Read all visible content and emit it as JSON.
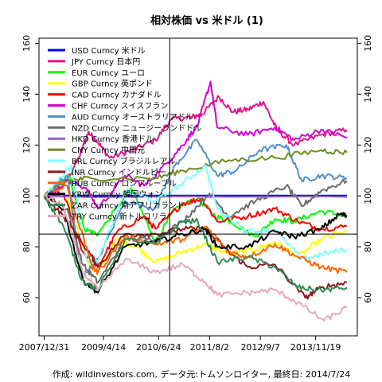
{
  "chart_data": {
    "type": "line",
    "title": "相対株価 vs 米ドル (1)",
    "caption": "作成: wildinvestors.com, データ元:トムソンロイター, 最終日: 2014/7/24",
    "ylim": [
      45,
      162
    ],
    "xlim": [
      "2007-11-20",
      "2014-10-15"
    ],
    "y_ticks": [
      60,
      80,
      100,
      120,
      140,
      160
    ],
    "x_ticks": [
      {
        "label": "2007/12/31",
        "date": "2007-12-31"
      },
      {
        "label": "2009/4/14",
        "date": "2009-04-14"
      },
      {
        "label": "2010/6/24",
        "date": "2010-06-24"
      },
      {
        "label": "2011/8/2",
        "date": "2011-08-02"
      },
      {
        "label": "2012/9/7",
        "date": "2012-09-07"
      },
      {
        "label": "2013/11/19",
        "date": "2013-11-19"
      }
    ],
    "reference_lines": {
      "horizontal": 85,
      "vertical_date": "2010-09-20"
    },
    "legend_position": "top-left",
    "series": [
      {
        "name": "USD Curncy 米ドル",
        "color": "#0000ff",
        "width": 3,
        "dates": [
          "2007-12-31",
          "2014-07-24"
        ],
        "values": [
          100,
          100
        ]
      },
      {
        "name": "JPY Curncy 日本円",
        "color": "#e0168c",
        "width": 2,
        "dates": [
          "2007-12-31",
          "2008-06-01",
          "2008-10-01",
          "2008-12-15",
          "2009-02-15",
          "2009-06-01",
          "2009-12-01",
          "2010-06-01",
          "2010-10-01",
          "2011-03-15",
          "2011-06-01",
          "2011-10-15",
          "2012-02-01",
          "2012-06-01",
          "2012-10-01",
          "2013-01-15",
          "2013-06-01",
          "2014-01-01",
          "2014-07-24"
        ],
        "values": [
          100,
          104,
          115,
          125,
          122,
          115,
          118,
          122,
          130,
          131,
          132,
          139,
          133,
          134,
          137,
          126,
          120,
          124,
          126
        ]
      },
      {
        "name": "EUR Curncy ユーロ",
        "color": "#00ff00",
        "width": 2,
        "dates": [
          "2007-12-31",
          "2008-07-15",
          "2008-11-15",
          "2009-03-01",
          "2009-11-20",
          "2010-06-01",
          "2010-11-01",
          "2011-04-30",
          "2011-09-15",
          "2012-01-15",
          "2012-07-25",
          "2013-01-01",
          "2013-06-01",
          "2014-01-01",
          "2014-07-24"
        ],
        "values": [
          100,
          108,
          87,
          85,
          103,
          82,
          95,
          99,
          92,
          90,
          84,
          91,
          90,
          94,
          92
        ]
      },
      {
        "name": "GBP Curncy 英ポンド",
        "color": "#ffff00",
        "width": 2,
        "dates": [
          "2007-12-31",
          "2008-07-01",
          "2008-12-29",
          "2009-03-01",
          "2009-08-01",
          "2010-01-01",
          "2010-06-01",
          "2011-01-01",
          "2011-07-01",
          "2012-01-01",
          "2012-08-01",
          "2013-01-01",
          "2013-07-01",
          "2014-01-01",
          "2014-07-24"
        ],
        "values": [
          100,
          99,
          72,
          70,
          83,
          80,
          74,
          78,
          81,
          77,
          79,
          82,
          76,
          83,
          86
        ]
      },
      {
        "name": "CAD Curncy カナダドル",
        "color": "#ff0000",
        "width": 2,
        "dates": [
          "2007-12-31",
          "2008-06-01",
          "2008-11-01",
          "2009-03-01",
          "2009-08-01",
          "2010-03-01",
          "2010-06-01",
          "2011-01-01",
          "2011-06-01",
          "2011-10-01",
          "2012-06-01",
          "2013-01-01",
          "2013-07-01",
          "2014-01-01",
          "2014-07-24"
        ],
        "values": [
          100,
          101,
          78,
          72,
          86,
          92,
          87,
          97,
          99,
          90,
          92,
          95,
          90,
          87,
          88
        ]
      },
      {
        "name": "CHF Curncy スイスフラン",
        "color": "#d400d4",
        "width": 2,
        "dates": [
          "2007-12-31",
          "2008-07-01",
          "2008-12-01",
          "2009-03-01",
          "2009-10-01",
          "2010-03-01",
          "2010-09-01",
          "2011-01-01",
          "2011-05-01",
          "2011-08-09",
          "2011-10-01",
          "2012-06-01",
          "2013-01-01",
          "2013-06-01",
          "2014-01-01",
          "2014-07-24"
        ],
        "values": [
          100,
          106,
          103,
          95,
          108,
          104,
          113,
          120,
          128,
          145,
          127,
          124,
          127,
          122,
          126,
          123
        ]
      },
      {
        "name": "AUD Curncy オーストラリアドル",
        "color": "#4f8fd0",
        "width": 2,
        "dates": [
          "2007-12-31",
          "2008-07-01",
          "2008-10-25",
          "2009-03-01",
          "2009-10-01",
          "2010-05-25",
          "2010-11-01",
          "2011-04-25",
          "2011-10-01",
          "2012-03-01",
          "2012-09-01",
          "2013-04-01",
          "2013-08-01",
          "2014-01-01",
          "2014-07-24"
        ],
        "values": [
          100,
          108,
          68,
          75,
          98,
          95,
          112,
          122,
          108,
          110,
          118,
          120,
          106,
          108,
          107
        ]
      },
      {
        "name": "NZD Curncy ニュージーランドドル",
        "color": "#6b6b6b",
        "width": 2,
        "dates": [
          "2007-12-31",
          "2008-07-01",
          "2008-11-01",
          "2009-03-01",
          "2009-10-01",
          "2010-06-01",
          "2011-01-01",
          "2011-08-01",
          "2012-01-01",
          "2012-08-01",
          "2013-04-01",
          "2013-08-01",
          "2014-01-01",
          "2014-07-24"
        ],
        "values": [
          100,
          95,
          73,
          66,
          83,
          83,
          90,
          101,
          92,
          98,
          104,
          96,
          102,
          106
        ]
      },
      {
        "name": "HKD Curncy 香港ドル",
        "color": "#9a5fd0",
        "width": 2,
        "dates": [
          "2007-12-31",
          "2008-06-01",
          "2009-01-01",
          "2010-01-01",
          "2011-01-01",
          "2012-01-01",
          "2013-01-01",
          "2014-01-01",
          "2014-07-24"
        ],
        "values": [
          100,
          99.8,
          99.5,
          99.6,
          99.8,
          99.6,
          99.7,
          99.8,
          99.6
        ]
      },
      {
        "name": "CNY Curncy 中国元",
        "color": "#6b8e23",
        "width": 2,
        "dates": [
          "2007-12-31",
          "2008-07-01",
          "2009-01-01",
          "2010-06-01",
          "2011-01-01",
          "2012-01-01",
          "2013-01-01",
          "2014-01-01",
          "2014-07-24"
        ],
        "values": [
          100,
          106,
          107,
          107,
          110,
          114,
          115,
          118,
          117
        ]
      },
      {
        "name": "BRL Curncy ブラジルレアル",
        "color": "#7fffff",
        "width": 2,
        "dates": [
          "2007-12-31",
          "2008-08-01",
          "2008-12-01",
          "2009-03-01",
          "2009-10-01",
          "2010-06-01",
          "2011-01-01",
          "2011-07-01",
          "2011-10-01",
          "2012-06-01",
          "2013-01-01",
          "2013-08-01",
          "2014-01-01",
          "2014-07-24"
        ],
        "values": [
          100,
          112,
          75,
          74,
          102,
          98,
          105,
          112,
          95,
          86,
          87,
          75,
          77,
          79
        ]
      },
      {
        "name": "INR Curncy インドルピー",
        "color": "#8b1a1a",
        "width": 2,
        "dates": [
          "2007-12-31",
          "2008-06-01",
          "2009-01-01",
          "2009-03-01",
          "2009-10-01",
          "2010-06-01",
          "2011-01-01",
          "2011-07-01",
          "2012-01-01",
          "2012-06-01",
          "2013-01-01",
          "2013-08-29",
          "2014-01-01",
          "2014-07-24"
        ],
        "values": [
          100,
          92,
          77,
          72,
          85,
          85,
          87,
          87,
          78,
          72,
          73,
          60,
          64,
          66
        ]
      },
      {
        "name": "RUB Curncy ロシアルーブル",
        "color": "#ff6400",
        "width": 2,
        "dates": [
          "2007-12-31",
          "2008-07-01",
          "2009-01-15",
          "2009-03-01",
          "2009-10-01",
          "2010-06-01",
          "2011-01-01",
          "2011-07-01",
          "2012-01-01",
          "2012-06-01",
          "2013-01-01",
          "2013-07-01",
          "2014-01-01",
          "2014-07-24"
        ],
        "values": [
          100,
          104,
          72,
          70,
          84,
          81,
          83,
          88,
          78,
          76,
          81,
          76,
          72,
          70
        ]
      },
      {
        "name": "KRW Curncy 韓国ウォン",
        "color": "#000000",
        "width": 2,
        "dates": [
          "2007-12-31",
          "2008-06-01",
          "2008-11-01",
          "2009-03-01",
          "2009-10-01",
          "2010-06-01",
          "2011-01-01",
          "2011-07-01",
          "2011-10-01",
          "2012-06-01",
          "2013-01-01",
          "2013-06-01",
          "2014-01-01",
          "2014-06-01",
          "2014-07-24"
        ],
        "values": [
          100,
          95,
          67,
          62,
          80,
          82,
          85,
          87,
          80,
          80,
          86,
          84,
          87,
          93,
          92
        ]
      },
      {
        "name": "ZAR Curncy 南アフリカランド",
        "color": "#2e8b57",
        "width": 2,
        "dates": [
          "2007-12-31",
          "2008-06-01",
          "2008-10-25",
          "2009-03-01",
          "2009-10-01",
          "2010-06-01",
          "2011-01-01",
          "2011-05-01",
          "2011-10-01",
          "2012-06-01",
          "2013-01-01",
          "2013-07-01",
          "2014-01-01",
          "2014-07-24"
        ],
        "values": [
          100,
          88,
          67,
          63,
          83,
          81,
          90,
          90,
          74,
          76,
          72,
          64,
          63,
          64
        ]
      },
      {
        "name": "TRY Curncy 新トルコリラ",
        "color": "#e8a8b8",
        "width": 2,
        "dates": [
          "2007-12-31",
          "2008-06-01",
          "2008-11-01",
          "2009-03-01",
          "2009-10-01",
          "2010-06-01",
          "2011-01-01",
          "2011-07-01",
          "2011-10-01",
          "2012-06-01",
          "2013-01-01",
          "2013-07-01",
          "2014-01-24",
          "2014-07-24"
        ],
        "values": [
          100,
          96,
          70,
          63,
          75,
          70,
          73,
          66,
          61,
          62,
          63,
          58,
          51,
          56
        ]
      }
    ]
  }
}
